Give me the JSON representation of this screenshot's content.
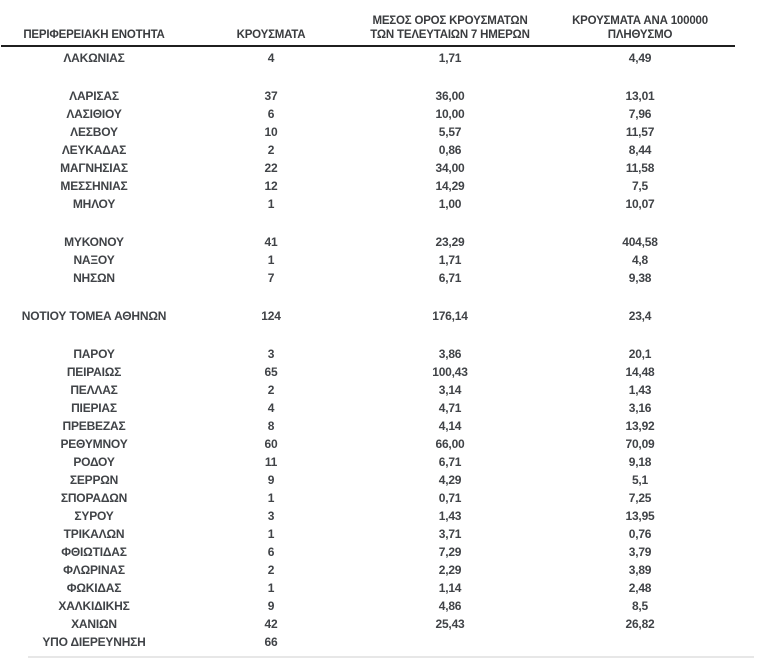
{
  "colors": {
    "background": "#ffffff",
    "text": "#404347",
    "header_rule": "#1f1f1f",
    "bottom_line": "#e7e7e7"
  },
  "table": {
    "headers": {
      "regional_unit": "ΠΕΡΙΦΕΡΕΙΑΚΗ ΕΝΟΤΗΤΑ",
      "cases": "ΚΡΟΥΣΜΑΤΑ",
      "avg_7day": "ΜΕΣΟΣ ΟΡΟΣ ΚΡΟΥΣΜΑΤΩΝ ΤΩΝ ΤΕΛΕΥΤΑΙΩΝ 7 ΗΜΕΡΩΝ",
      "per_100k": "ΚΡΟΥΣΜΑΤΑ ΑΝΑ 100000 ΠΛΗΘΥΣΜΟ"
    },
    "rows": [
      {
        "region": "ΛΑΚΩΝΙΑΣ",
        "cases": "4",
        "avg_7day": "1,71",
        "per_100k": "4,49"
      },
      {
        "spacer": true
      },
      {
        "region": "ΛΑΡΙΣΑΣ",
        "cases": "37",
        "avg_7day": "36,00",
        "per_100k": "13,01"
      },
      {
        "region": "ΛΑΣΙΘΙΟΥ",
        "cases": "6",
        "avg_7day": "10,00",
        "per_100k": "7,96"
      },
      {
        "region": "ΛΕΣΒΟΥ",
        "cases": "10",
        "avg_7day": "5,57",
        "per_100k": "11,57"
      },
      {
        "region": "ΛΕΥΚΑΔΑΣ",
        "cases": "2",
        "avg_7day": "0,86",
        "per_100k": "8,44"
      },
      {
        "region": "ΜΑΓΝΗΣΙΑΣ",
        "cases": "22",
        "avg_7day": "34,00",
        "per_100k": "11,58"
      },
      {
        "region": "ΜΕΣΣΗΝΙΑΣ",
        "cases": "12",
        "avg_7day": "14,29",
        "per_100k": "7,5"
      },
      {
        "region": "ΜΗΛΟΥ",
        "cases": "1",
        "avg_7day": "1,00",
        "per_100k": "10,07"
      },
      {
        "spacer": true
      },
      {
        "region": "ΜΥΚΟΝΟΥ",
        "cases": "41",
        "avg_7day": "23,29",
        "per_100k": "404,58"
      },
      {
        "region": "ΝΑΞΟΥ",
        "cases": "1",
        "avg_7day": "1,71",
        "per_100k": "4,8"
      },
      {
        "region": "ΝΗΣΩΝ",
        "cases": "7",
        "avg_7day": "6,71",
        "per_100k": "9,38"
      },
      {
        "spacer": true
      },
      {
        "region": "ΝΟΤΙΟΥ ΤΟΜΕΑ ΑΘΗΝΩΝ",
        "cases": "124",
        "avg_7day": "176,14",
        "per_100k": "23,4"
      },
      {
        "spacer": true
      },
      {
        "region": "ΠΑΡΟΥ",
        "cases": "3",
        "avg_7day": "3,86",
        "per_100k": "20,1"
      },
      {
        "region": "ΠΕΙΡΑΙΩΣ",
        "cases": "65",
        "avg_7day": "100,43",
        "per_100k": "14,48"
      },
      {
        "region": "ΠΕΛΛΑΣ",
        "cases": "2",
        "avg_7day": "3,14",
        "per_100k": "1,43"
      },
      {
        "region": "ΠΙΕΡΙΑΣ",
        "cases": "4",
        "avg_7day": "4,71",
        "per_100k": "3,16"
      },
      {
        "region": "ΠΡΕΒΕΖΑΣ",
        "cases": "8",
        "avg_7day": "4,14",
        "per_100k": "13,92"
      },
      {
        "region": "ΡΕΘΥΜΝΟΥ",
        "cases": "60",
        "avg_7day": "66,00",
        "per_100k": "70,09"
      },
      {
        "region": "ΡΟΔΟΥ",
        "cases": "11",
        "avg_7day": "6,71",
        "per_100k": "9,18"
      },
      {
        "region": "ΣΕΡΡΩΝ",
        "cases": "9",
        "avg_7day": "4,29",
        "per_100k": "5,1"
      },
      {
        "region": "ΣΠΟΡΑΔΩΝ",
        "cases": "1",
        "avg_7day": "0,71",
        "per_100k": "7,25"
      },
      {
        "region": "ΣΥΡΟΥ",
        "cases": "3",
        "avg_7day": "1,43",
        "per_100k": "13,95"
      },
      {
        "region": "ΤΡΙΚΑΛΩΝ",
        "cases": "1",
        "avg_7day": "3,71",
        "per_100k": "0,76"
      },
      {
        "region": "ΦΘΙΩΤΙΔΑΣ",
        "cases": "6",
        "avg_7day": "7,29",
        "per_100k": "3,79"
      },
      {
        "region": "ΦΛΩΡΙΝΑΣ",
        "cases": "2",
        "avg_7day": "2,29",
        "per_100k": "3,89"
      },
      {
        "region": "ΦΩΚΙΔΑΣ",
        "cases": "1",
        "avg_7day": "1,14",
        "per_100k": "2,48"
      },
      {
        "region": "ΧΑΛΚΙΔΙΚΗΣ",
        "cases": "9",
        "avg_7day": "4,86",
        "per_100k": "8,5"
      },
      {
        "region": "ΧΑΝΙΩΝ",
        "cases": "42",
        "avg_7day": "25,43",
        "per_100k": "26,82"
      },
      {
        "region": "ΥΠΟ ΔΙΕΡΕΥΝΗΣΗ",
        "cases": "66",
        "avg_7day": "",
        "per_100k": ""
      }
    ]
  }
}
